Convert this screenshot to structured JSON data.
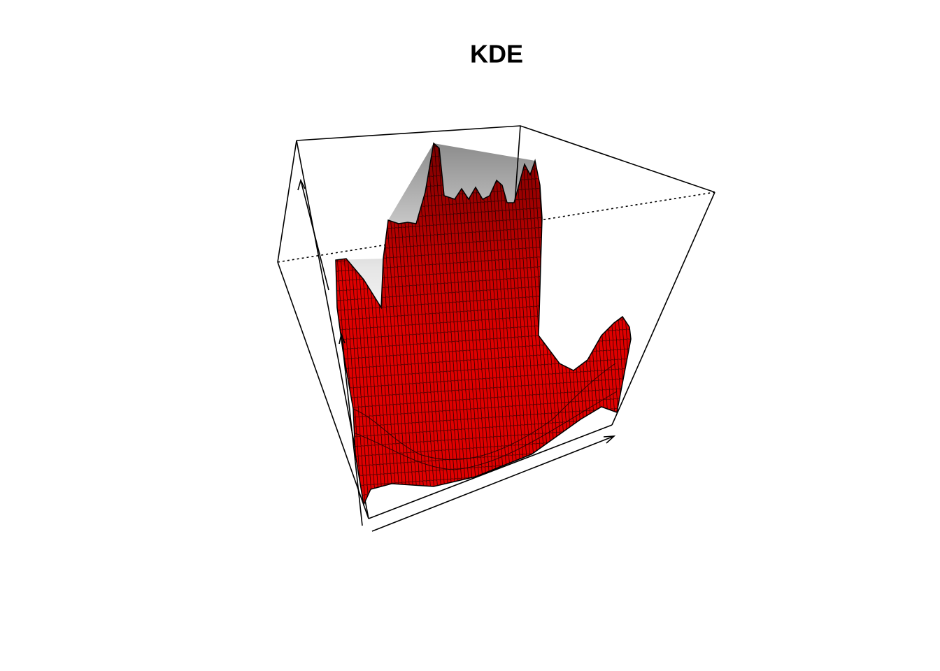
{
  "chart_data": {
    "type": "surface",
    "title": "KDE"
  }
}
